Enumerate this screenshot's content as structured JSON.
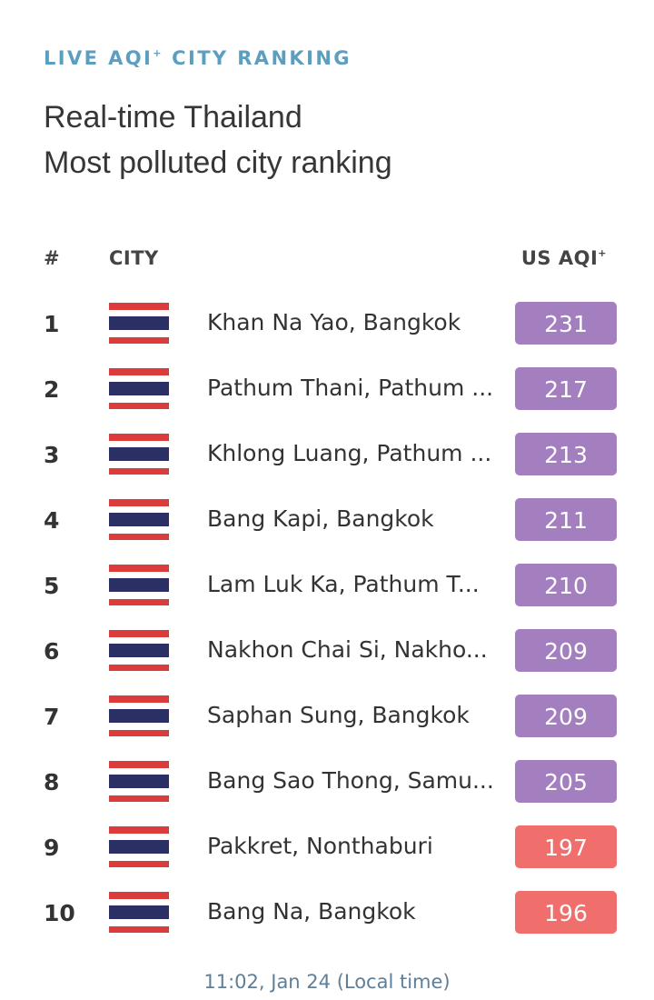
{
  "header": {
    "eyebrow": "LIVE AQI",
    "eyebrow_sup": "+",
    "eyebrow_rest": "CITY RANKING",
    "title_line1": "Real-time Thailand",
    "title_line2": "Most polluted city ranking"
  },
  "columns": {
    "rank": "#",
    "city": "CITY",
    "aqi": "US AQI",
    "aqi_sup": "+"
  },
  "colors": {
    "unhealthy_purple": "#a47fc0",
    "unhealthy_red": "#f06e6b",
    "flag_red": "#da3b3b",
    "flag_blue": "#2b2f63"
  },
  "rows": [
    {
      "rank": "1",
      "city": "Khan Na Yao, Bangkok",
      "aqi": "231",
      "level": "very-unhealthy",
      "flag": "thailand-flag"
    },
    {
      "rank": "2",
      "city": "Pathum Thani, Pathum ...",
      "aqi": "217",
      "level": "very-unhealthy",
      "flag": "thailand-flag"
    },
    {
      "rank": "3",
      "city": "Khlong Luang, Pathum ...",
      "aqi": "213",
      "level": "very-unhealthy",
      "flag": "thailand-flag"
    },
    {
      "rank": "4",
      "city": "Bang Kapi, Bangkok",
      "aqi": "211",
      "level": "very-unhealthy",
      "flag": "thailand-flag"
    },
    {
      "rank": "5",
      "city": "Lam Luk Ka, Pathum T...",
      "aqi": "210",
      "level": "very-unhealthy",
      "flag": "thailand-flag"
    },
    {
      "rank": "6",
      "city": "Nakhon Chai Si, Nakho...",
      "aqi": "209",
      "level": "very-unhealthy",
      "flag": "thailand-flag"
    },
    {
      "rank": "7",
      "city": "Saphan Sung, Bangkok",
      "aqi": "209",
      "level": "very-unhealthy",
      "flag": "thailand-flag"
    },
    {
      "rank": "8",
      "city": "Bang Sao Thong, Samu...",
      "aqi": "205",
      "level": "very-unhealthy",
      "flag": "thailand-flag"
    },
    {
      "rank": "9",
      "city": "Pakkret, Nonthaburi",
      "aqi": "197",
      "level": "unhealthy",
      "flag": "thailand-flag"
    },
    {
      "rank": "10",
      "city": "Bang Na, Bangkok",
      "aqi": "196",
      "level": "unhealthy",
      "flag": "thailand-flag"
    }
  ],
  "footer": {
    "timestamp": "11:02, Jan 24 (Local time)"
  }
}
